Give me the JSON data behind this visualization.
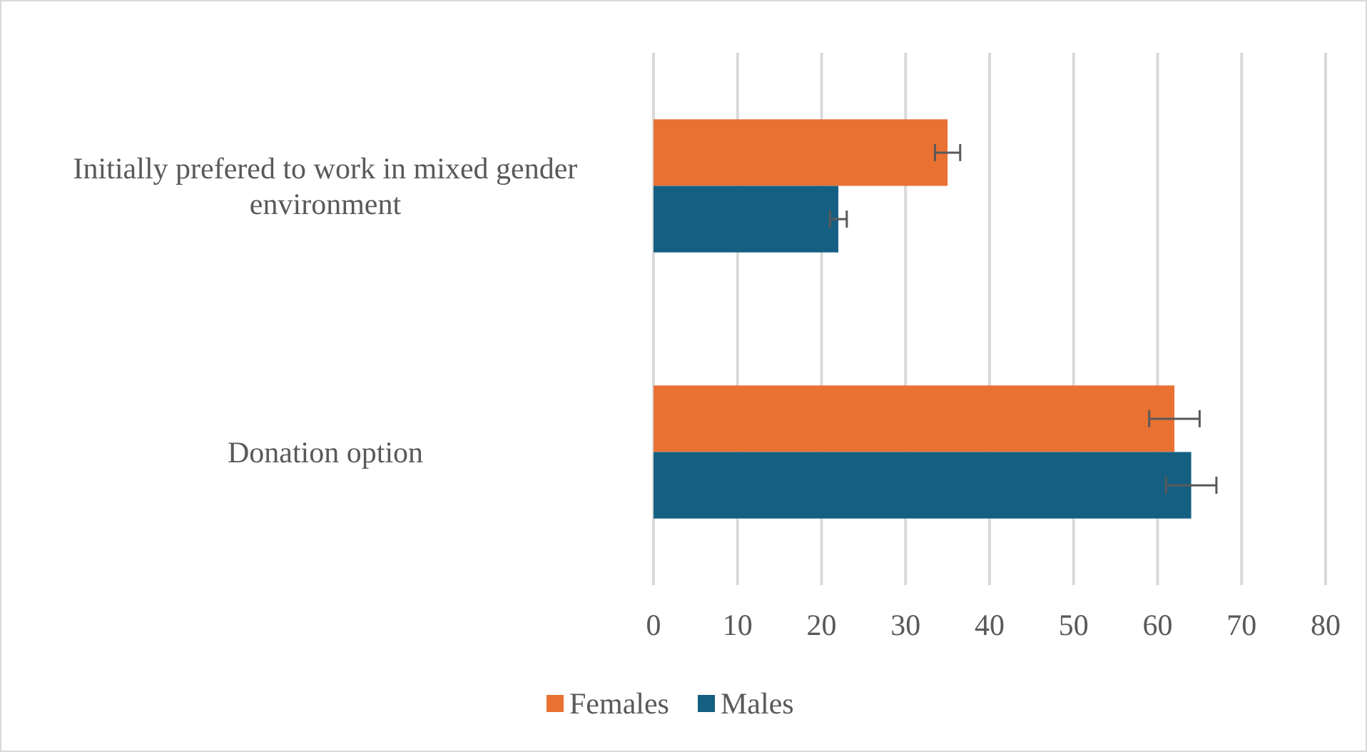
{
  "chart_data": {
    "type": "bar",
    "orientation": "horizontal",
    "categories": [
      "Initially prefered to work in mixed gender environment",
      "Donation option"
    ],
    "series": [
      {
        "name": "Females",
        "color": "#e97132",
        "values": [
          35,
          62
        ],
        "errors": [
          1.5,
          3
        ]
      },
      {
        "name": "Males",
        "color": "#156082",
        "values": [
          22,
          64
        ],
        "errors": [
          1,
          3
        ]
      }
    ],
    "xlim": [
      0,
      80
    ],
    "xticks": [
      0,
      10,
      20,
      30,
      40,
      50,
      60,
      70,
      80
    ],
    "grid": "x",
    "legend": "bottom"
  }
}
